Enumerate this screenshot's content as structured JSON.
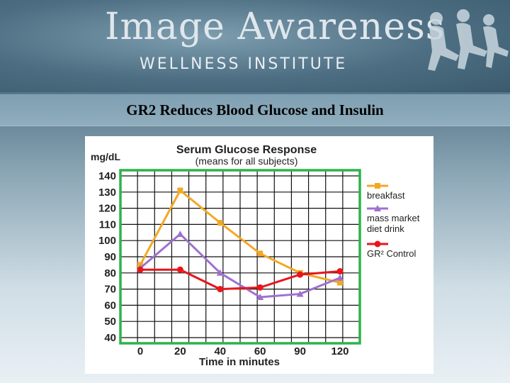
{
  "header": {
    "brand_title": "Image Awareness",
    "brand_subtitle": "WELLNESS INSTITUTE",
    "slide_title": "GR2 Reduces Blood Glucose and Insulin"
  },
  "chart_data": {
    "type": "line",
    "title": "Serum Glucose Response",
    "subtitle": "(means for all subjects)",
    "ylabel": "mg/dL",
    "xlabel": "Time in minutes",
    "categories": [
      "0",
      "20",
      "40",
      "60",
      "90",
      "120"
    ],
    "yticks": [
      140,
      130,
      120,
      110,
      100,
      90,
      80,
      70,
      60,
      50,
      40
    ],
    "ylim": [
      40,
      140
    ],
    "grid": true,
    "legend_position": "right",
    "series": [
      {
        "name": "breakfast",
        "color": "#f3a823",
        "marker": "square",
        "values": [
          85,
          131,
          111,
          92,
          80,
          74
        ]
      },
      {
        "name": "mass market diet drink",
        "color": "#a070d0",
        "marker": "triangle",
        "values": [
          83,
          104,
          80,
          65,
          67,
          77
        ]
      },
      {
        "name": "GR² Control",
        "color": "#e8161b",
        "marker": "circle",
        "values": [
          82,
          82,
          70,
          71,
          79,
          81
        ]
      }
    ],
    "plot_border_color": "#2db34a"
  }
}
